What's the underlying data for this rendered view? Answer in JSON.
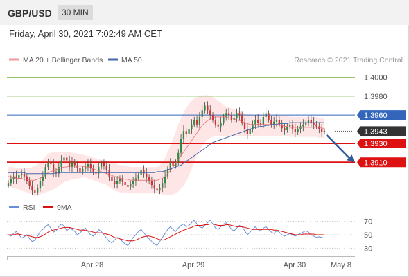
{
  "header": {
    "symbol": "GBP/USD",
    "timeframe": "30 MIN"
  },
  "datetime": "Friday, April 30, 2021 7:02:49 AM CET",
  "copyright": "Research © 2021 Trading Central",
  "colors": {
    "bull": "#2f8a45",
    "bear": "#cc3333",
    "wick": "#444444",
    "band": "#ffd6d6",
    "ma20": "#e06b6b",
    "ma50": "#4468a8",
    "resistance": "#88bb55",
    "pivot": "#3366bb",
    "support": "#dd1111",
    "arrow": "#2e5c9a",
    "last": "#333333",
    "rsi": "#6b8fd6",
    "rsi_ma": "#dd1111"
  },
  "chart_data": [
    {
      "type": "candlestick",
      "legend": [
        "MA 20 + Bollinger Bands",
        "MA 50"
      ],
      "ylim": [
        1.3875,
        1.401
      ],
      "x_ticks": [
        "Apr 28",
        "Apr 29",
        "Apr 30",
        "May 8"
      ],
      "levels": [
        {
          "value": 1.4,
          "label": "1.4000",
          "kind": "resistance"
        },
        {
          "value": 1.398,
          "label": "1.3980",
          "kind": "resistance"
        },
        {
          "value": 1.396,
          "label": "1.3960",
          "kind": "pivot"
        },
        {
          "value": 1.3943,
          "label": "1.3943",
          "kind": "last"
        },
        {
          "value": 1.393,
          "label": "1.3930",
          "kind": "support"
        },
        {
          "value": 1.391,
          "label": "1.3910",
          "kind": "support"
        }
      ],
      "arrow": {
        "from": 1.3942,
        "to": 1.391,
        "direction": "down"
      },
      "close": [
        1.3888,
        1.3892,
        1.3895,
        1.3893,
        1.3897,
        1.3898,
        1.3895,
        1.389,
        1.3885,
        1.388,
        1.3878,
        1.3883,
        1.389,
        1.3895,
        1.3905,
        1.391,
        1.3908,
        1.39,
        1.3898,
        1.3905,
        1.3912,
        1.3915,
        1.3912,
        1.3905,
        1.391,
        1.3907,
        1.3904,
        1.39,
        1.3903,
        1.3905,
        1.3908,
        1.3904,
        1.39,
        1.3898,
        1.3905,
        1.3909,
        1.3906,
        1.3902,
        1.3895,
        1.389,
        1.3887,
        1.389,
        1.3893,
        1.3889,
        1.3886,
        1.3884,
        1.3887,
        1.389,
        1.3893,
        1.3897,
        1.3902,
        1.3898,
        1.3894,
        1.389,
        1.3886,
        1.3882,
        1.388,
        1.3883,
        1.3888,
        1.3895,
        1.3903,
        1.391,
        1.3906,
        1.391,
        1.392,
        1.3935,
        1.3943,
        1.394,
        1.3945,
        1.395,
        1.3955,
        1.395,
        1.3958,
        1.3965,
        1.397,
        1.3965,
        1.396,
        1.3955,
        1.395,
        1.3948,
        1.3952,
        1.3958,
        1.3962,
        1.396,
        1.3955,
        1.3957,
        1.3962,
        1.396,
        1.3952,
        1.3945,
        1.394,
        1.3945,
        1.395,
        1.3955,
        1.3952,
        1.395,
        1.3958,
        1.3962,
        1.3955,
        1.395,
        1.3953,
        1.3955,
        1.395,
        1.3946,
        1.3944,
        1.3948,
        1.395,
        1.3945,
        1.3942,
        1.3945,
        1.3948,
        1.395,
        1.3952,
        1.3955,
        1.3952,
        1.395,
        1.3948,
        1.3945,
        1.3942,
        1.3943
      ],
      "ma20": [
        1.3895,
        1.3894,
        1.3894,
        1.3893,
        1.3893,
        1.3893,
        1.3892,
        1.3892,
        1.3891,
        1.3891,
        1.3891,
        1.3892,
        1.3893,
        1.3895,
        1.3897,
        1.3899,
        1.39,
        1.3901,
        1.3902,
        1.3903,
        1.3904,
        1.3905,
        1.3905,
        1.3906,
        1.3906,
        1.3906,
        1.3906,
        1.3906,
        1.3906,
        1.3905,
        1.3905,
        1.3904,
        1.3903,
        1.3902,
        1.3901,
        1.39,
        1.3899,
        1.3898,
        1.3897,
        1.3896,
        1.3895,
        1.3894,
        1.3893,
        1.3893,
        1.3892,
        1.3892,
        1.3891,
        1.3891,
        1.3891,
        1.3891,
        1.3891,
        1.3891,
        1.3891,
        1.3891,
        1.3891,
        1.3891,
        1.3891,
        1.3892,
        1.3893,
        1.3895,
        1.3898,
        1.3901,
        1.3905,
        1.3909,
        1.3913,
        1.3917,
        1.3921,
        1.3925,
        1.3929,
        1.3933,
        1.3937,
        1.3941,
        1.3945,
        1.3949,
        1.3952,
        1.3954,
        1.3956,
        1.3957,
        1.3958,
        1.3958,
        1.3958,
        1.3958,
        1.3958,
        1.3957,
        1.3957,
        1.3956,
        1.3955,
        1.3954,
        1.3953,
        1.3952,
        1.3951,
        1.395,
        1.395,
        1.395,
        1.395,
        1.395,
        1.395,
        1.395,
        1.395,
        1.395,
        1.395,
        1.395,
        1.3949,
        1.3949,
        1.3948,
        1.3948,
        1.3947,
        1.3947,
        1.3947,
        1.3947,
        1.3947,
        1.3947,
        1.3947,
        1.3947,
        1.3947,
        1.3947,
        1.3947,
        1.3947,
        1.3946,
        1.3946
      ],
      "bb_upper": [
        1.3905,
        1.3905,
        1.3905,
        1.3904,
        1.3904,
        1.3904,
        1.3904,
        1.3904,
        1.3904,
        1.3905,
        1.3906,
        1.3908,
        1.391,
        1.3913,
        1.3916,
        1.3919,
        1.392,
        1.3921,
        1.3921,
        1.3921,
        1.3921,
        1.3921,
        1.3921,
        1.3921,
        1.392,
        1.392,
        1.3919,
        1.3919,
        1.3918,
        1.3917,
        1.3917,
        1.3916,
        1.3915,
        1.3914,
        1.3913,
        1.3913,
        1.3912,
        1.3911,
        1.3911,
        1.391,
        1.3909,
        1.3908,
        1.3907,
        1.3907,
        1.3906,
        1.3906,
        1.3905,
        1.3905,
        1.3905,
        1.3905,
        1.3905,
        1.3905,
        1.3905,
        1.3905,
        1.3905,
        1.3905,
        1.3905,
        1.3907,
        1.391,
        1.3915,
        1.3921,
        1.3928,
        1.3935,
        1.3942,
        1.395,
        1.3957,
        1.3963,
        1.3968,
        1.3972,
        1.3975,
        1.3978,
        1.3979,
        1.398,
        1.3981,
        1.3981,
        1.3981,
        1.398,
        1.3979,
        1.3977,
        1.3975,
        1.3973,
        1.3971,
        1.3969,
        1.3968,
        1.3967,
        1.3966,
        1.3965,
        1.3964,
        1.3963,
        1.3962,
        1.3961,
        1.3961,
        1.396,
        1.396,
        1.396,
        1.396,
        1.396,
        1.396,
        1.396,
        1.396,
        1.396,
        1.396,
        1.396,
        1.3959,
        1.3959,
        1.3959,
        1.3958,
        1.3958,
        1.3958,
        1.3958,
        1.3958,
        1.3958,
        1.3958,
        1.3958,
        1.3958,
        1.3958,
        1.3958,
        1.3957,
        1.3957,
        1.3957
      ],
      "bb_lower": [
        1.3885,
        1.3884,
        1.3883,
        1.3882,
        1.3881,
        1.388,
        1.3879,
        1.3878,
        1.3877,
        1.3876,
        1.3875,
        1.3875,
        1.3876,
        1.3877,
        1.3878,
        1.3879,
        1.388,
        1.3881,
        1.3883,
        1.3885,
        1.3887,
        1.3889,
        1.389,
        1.3891,
        1.3892,
        1.3892,
        1.3893,
        1.3893,
        1.3894,
        1.3894,
        1.3893,
        1.3892,
        1.3891,
        1.389,
        1.3889,
        1.3888,
        1.3887,
        1.3886,
        1.3884,
        1.3882,
        1.388,
        1.3879,
        1.3878,
        1.3878,
        1.3878,
        1.3878,
        1.3877,
        1.3877,
        1.3877,
        1.3877,
        1.3877,
        1.3877,
        1.3877,
        1.3877,
        1.3877,
        1.3877,
        1.3877,
        1.3877,
        1.3876,
        1.3875,
        1.3875,
        1.3875,
        1.3876,
        1.3877,
        1.3879,
        1.3882,
        1.3885,
        1.389,
        1.3896,
        1.3903,
        1.391,
        1.3917,
        1.3922,
        1.3927,
        1.3931,
        1.3934,
        1.3936,
        1.3937,
        1.3938,
        1.3938,
        1.3938,
        1.3938,
        1.3938,
        1.3938,
        1.3938,
        1.3938,
        1.3938,
        1.3938,
        1.3938,
        1.3938,
        1.3938,
        1.3938,
        1.3938,
        1.3938,
        1.3938,
        1.3938,
        1.3938,
        1.3938,
        1.3938,
        1.3938,
        1.3938,
        1.3938,
        1.3938,
        1.3938,
        1.3938,
        1.3937,
        1.3937,
        1.3937,
        1.3937,
        1.3937,
        1.3937,
        1.3937,
        1.3937,
        1.3937,
        1.3937,
        1.3937,
        1.3937,
        1.3936,
        1.3936,
        1.3936
      ],
      "ma50": [
        1.3899,
        1.3899,
        1.3899,
        1.3899,
        1.3899,
        1.3899,
        1.3899,
        1.3898,
        1.3898,
        1.3898,
        1.3898,
        1.3898,
        1.3898,
        1.3898,
        1.3898,
        1.3898,
        1.3898,
        1.3898,
        1.3899,
        1.3899,
        1.3899,
        1.3899,
        1.3899,
        1.3899,
        1.3899,
        1.3899,
        1.3899,
        1.3899,
        1.3899,
        1.3899,
        1.3899,
        1.3899,
        1.3899,
        1.3899,
        1.3899,
        1.3899,
        1.3899,
        1.3899,
        1.3899,
        1.3899,
        1.3899,
        1.3899,
        1.3899,
        1.3899,
        1.3899,
        1.3899,
        1.3899,
        1.3899,
        1.3899,
        1.3899,
        1.3899,
        1.3899,
        1.3899,
        1.3899,
        1.3899,
        1.3899,
        1.39,
        1.39,
        1.39,
        1.3901,
        1.3902,
        1.3903,
        1.3904,
        1.3905,
        1.3906,
        1.3907,
        1.3909,
        1.3911,
        1.3913,
        1.3915,
        1.3917,
        1.3919,
        1.3921,
        1.3923,
        1.3925,
        1.3927,
        1.3929,
        1.3931,
        1.3932,
        1.3933,
        1.3934,
        1.3935,
        1.3936,
        1.3937,
        1.3938,
        1.3939,
        1.394,
        1.3941,
        1.3942,
        1.3943,
        1.3944,
        1.3945,
        1.3946,
        1.3947,
        1.3947,
        1.3948,
        1.3948,
        1.3949,
        1.3949,
        1.395,
        1.395,
        1.395,
        1.3951,
        1.3951,
        1.3951,
        1.3951,
        1.3952,
        1.3952,
        1.3952,
        1.3952,
        1.3952,
        1.3952,
        1.3952,
        1.3952,
        1.3952,
        1.3952,
        1.3952,
        1.3952,
        1.3952,
        1.3952
      ]
    },
    {
      "type": "line",
      "legend": [
        "RSI",
        "9MA"
      ],
      "ylim": [
        20,
        80
      ],
      "y_ticks": [
        70,
        50,
        30
      ],
      "series": [
        {
          "name": "RSI",
          "values": [
            50,
            48,
            52,
            55,
            50,
            45,
            47,
            50,
            44,
            40,
            42,
            48,
            55,
            58,
            62,
            65,
            60,
            54,
            56,
            62,
            66,
            63,
            56,
            60,
            58,
            55,
            50,
            53,
            57,
            60,
            55,
            50,
            48,
            52,
            58,
            55,
            50,
            45,
            40,
            38,
            42,
            46,
            44,
            40,
            36,
            34,
            40,
            46,
            50,
            55,
            58,
            53,
            48,
            44,
            40,
            36,
            34,
            40,
            46,
            52,
            58,
            62,
            58,
            55,
            60,
            64,
            66,
            62,
            64,
            68,
            72,
            66,
            62,
            60,
            64,
            68,
            72,
            66,
            60,
            58,
            62,
            66,
            68,
            64,
            58,
            56,
            60,
            64,
            62,
            56,
            50,
            54,
            58,
            62,
            58,
            56,
            60,
            62,
            58,
            54,
            52,
            56,
            54,
            50,
            48,
            50,
            52,
            50,
            48,
            50,
            52,
            54,
            56,
            54,
            50,
            48,
            46,
            47,
            46,
            45
          ]
        },
        {
          "name": "9MA",
          "values": [
            50,
            50,
            50,
            51,
            51,
            50,
            49,
            49,
            48,
            47,
            46,
            46,
            47,
            49,
            51,
            54,
            56,
            57,
            58,
            59,
            60,
            61,
            61,
            61,
            60,
            59,
            58,
            57,
            57,
            57,
            56,
            55,
            54,
            53,
            53,
            53,
            52,
            51,
            50,
            48,
            46,
            45,
            44,
            43,
            42,
            41,
            41,
            41,
            42,
            44,
            46,
            47,
            48,
            48,
            47,
            46,
            44,
            43,
            42,
            43,
            45,
            47,
            49,
            51,
            53,
            55,
            57,
            58,
            60,
            61,
            63,
            64,
            64,
            64,
            65,
            65,
            66,
            66,
            65,
            64,
            64,
            64,
            65,
            65,
            64,
            63,
            62,
            62,
            62,
            61,
            60,
            59,
            58,
            58,
            58,
            58,
            58,
            58,
            58,
            58,
            57,
            57,
            56,
            55,
            54,
            53,
            52,
            51,
            50,
            50,
            50,
            51,
            51,
            51,
            51,
            51,
            50,
            50,
            50,
            50
          ]
        }
      ]
    }
  ]
}
